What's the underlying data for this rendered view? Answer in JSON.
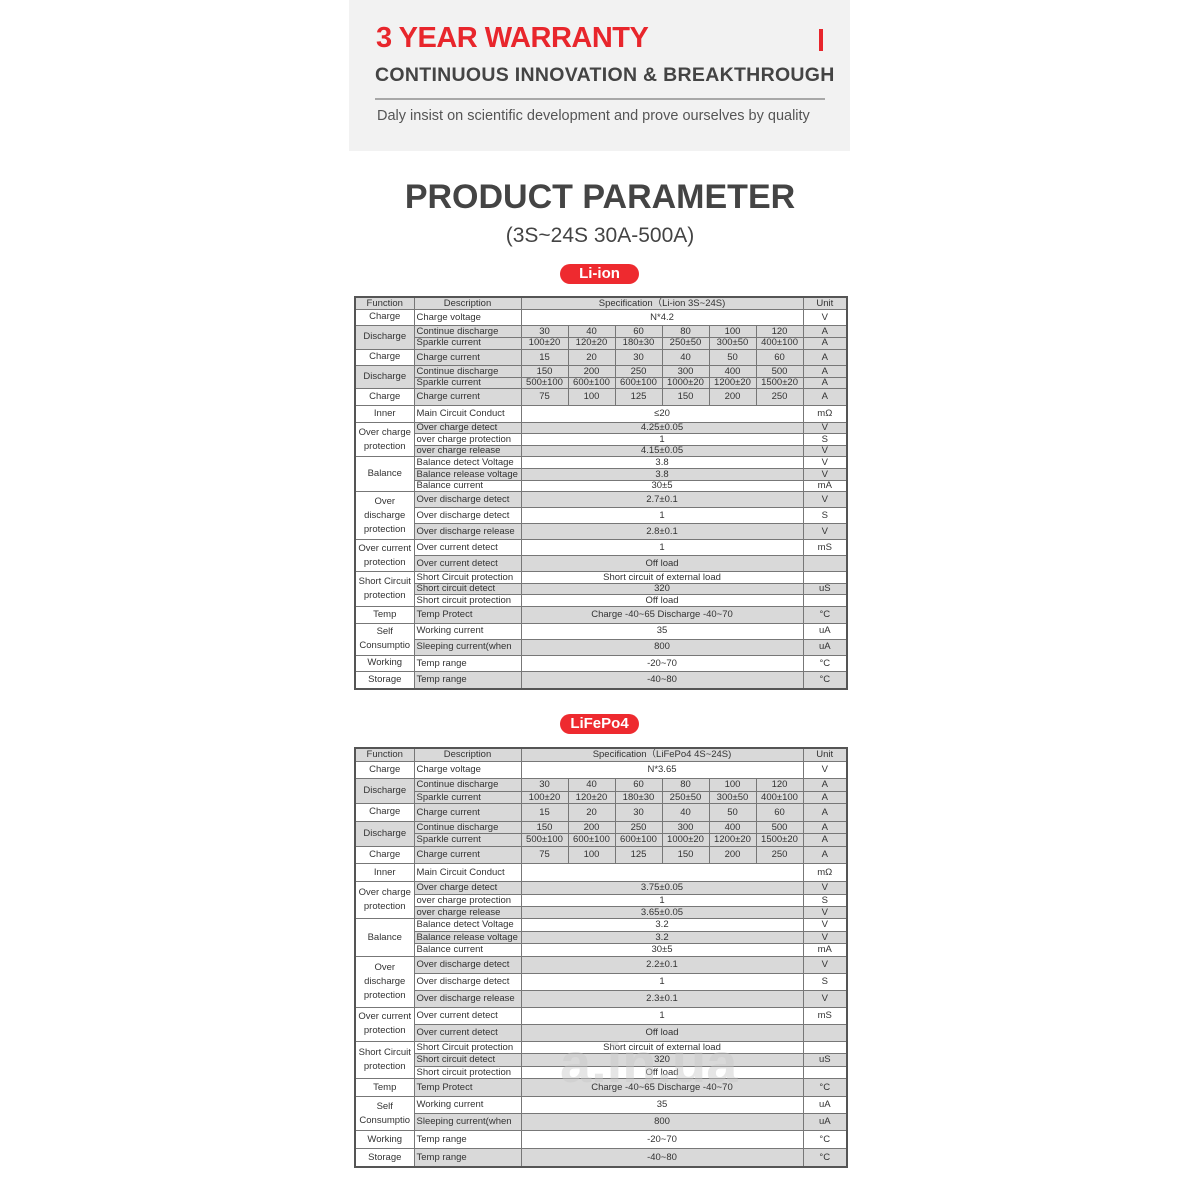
{
  "banner": {
    "title": "3 YEAR WARRANTY",
    "subtitle": "CONTINUOUS INNOVATION & BREAKTHROUGH",
    "tagline": "Daly insist on scientific development and prove ourselves by quality"
  },
  "heading": {
    "title": "PRODUCT PARAMETER",
    "range": "(3S~24S  30A-500A)"
  },
  "colors": {
    "accent": "#e8262c",
    "shade": "#d9d9d9"
  },
  "watermark": "a.in.ua",
  "tables": [
    {
      "badge": "Li-ion",
      "headers": {
        "function": "Function",
        "description": "Description",
        "spec": "Specification（Li-ion  3S~24S)",
        "unit": "Unit"
      },
      "groups": [
        {
          "fn": "Charge",
          "shade": false,
          "rows": [
            {
              "desc": "Charge voltage",
              "vals": [
                "N*4.2"
              ],
              "unit": "V",
              "shade": false
            }
          ]
        },
        {
          "fn": "Discharge",
          "shade": true,
          "rows": [
            {
              "desc": "Continue discharge",
              "vals": [
                "30",
                "40",
                "60",
                "80",
                "100",
                "120"
              ],
              "unit": "A",
              "shade": true
            },
            {
              "desc": "Sparkle current",
              "vals": [
                "100±20",
                "120±20",
                "180±30",
                "250±50",
                "300±50",
                "400±100"
              ],
              "unit": "A",
              "shade": true
            }
          ]
        },
        {
          "fn": "Charge",
          "shade": false,
          "rows": [
            {
              "desc": "Charge current",
              "vals": [
                "15",
                "20",
                "30",
                "40",
                "50",
                "60"
              ],
              "unit": "A",
              "shade": true
            }
          ]
        },
        {
          "fn": "Discharge",
          "shade": true,
          "rows": [
            {
              "desc": "Continue discharge",
              "vals": [
                "150",
                "200",
                "250",
                "300",
                "400",
                "500"
              ],
              "unit": "A",
              "shade": true
            },
            {
              "desc": "Sparkle current",
              "vals": [
                "500±100",
                "600±100",
                "600±100",
                "1000±20",
                "1200±20",
                "1500±20"
              ],
              "unit": "A",
              "shade": true
            }
          ]
        },
        {
          "fn": "Charge",
          "shade": false,
          "rows": [
            {
              "desc": "Charge current",
              "vals": [
                "75",
                "100",
                "125",
                "150",
                "200",
                "250"
              ],
              "unit": "A",
              "shade": true
            }
          ]
        },
        {
          "fn": "Inner",
          "shade": false,
          "rows": [
            {
              "desc": "Main Circuit Conduct",
              "vals": [
                "≤20"
              ],
              "unit": "mΩ",
              "shade": false
            }
          ]
        },
        {
          "fn": "Over charge protection",
          "shade": false,
          "rows": [
            {
              "desc": "Over charge detect",
              "vals": [
                "4.25±0.05"
              ],
              "unit": "V",
              "shade": true
            },
            {
              "desc": "over charge protection",
              "vals": [
                "1"
              ],
              "unit": "S",
              "shade": false
            },
            {
              "desc": "over charge release",
              "vals": [
                "4.15±0.05"
              ],
              "unit": "V",
              "shade": true
            }
          ]
        },
        {
          "fn": "Balance",
          "shade": false,
          "rows": [
            {
              "desc": "Balance detect Voltage",
              "vals": [
                "3.8"
              ],
              "unit": "V",
              "shade": false
            },
            {
              "desc": "Balance release voltage",
              "vals": [
                "3.8"
              ],
              "unit": "V",
              "shade": true
            },
            {
              "desc": "Balance current",
              "vals": [
                "30±5"
              ],
              "unit": "mA",
              "shade": false
            }
          ]
        },
        {
          "fn": "Over discharge protection",
          "shade": false,
          "rows": [
            {
              "desc": "Over discharge detect",
              "vals": [
                "2.7±0.1"
              ],
              "unit": "V",
              "shade": true
            },
            {
              "desc": "Over discharge detect",
              "vals": [
                "1"
              ],
              "unit": "S",
              "shade": false
            },
            {
              "desc": "Over discharge release",
              "vals": [
                "2.8±0.1"
              ],
              "unit": "V",
              "shade": true
            }
          ]
        },
        {
          "fn": "Over current protection",
          "shade": false,
          "rows": [
            {
              "desc": "Over current detect",
              "vals": [
                "1"
              ],
              "unit": "mS",
              "shade": false
            },
            {
              "desc": "Over current detect",
              "vals": [
                "Off load"
              ],
              "unit": "",
              "shade": true
            }
          ]
        },
        {
          "fn": "Short Circuit protection",
          "shade": false,
          "rows": [
            {
              "desc": "Short Circuit protection",
              "vals": [
                "Short circuit of external load"
              ],
              "unit": "",
              "shade": false
            },
            {
              "desc": "Short circuit detect",
              "vals": [
                "320"
              ],
              "unit": "uS",
              "shade": true
            },
            {
              "desc": "Short circuit protection",
              "vals": [
                "Off load"
              ],
              "unit": "",
              "shade": false
            }
          ]
        },
        {
          "fn": "Temp",
          "shade": false,
          "rows": [
            {
              "desc": "Temp Protect",
              "vals": [
                "Charge -40~65 Discharge -40~70"
              ],
              "unit": "°C",
              "shade": true
            }
          ]
        },
        {
          "fn": "Self Consumptio",
          "shade": false,
          "rows": [
            {
              "desc": "Working current",
              "vals": [
                "35"
              ],
              "unit": "uA",
              "shade": false
            },
            {
              "desc": "Sleeping current(when",
              "vals": [
                "800"
              ],
              "unit": "uA",
              "shade": true
            }
          ]
        },
        {
          "fn": "Working",
          "shade": false,
          "rows": [
            {
              "desc": "Temp range",
              "vals": [
                "-20~70"
              ],
              "unit": "°C",
              "shade": false
            }
          ]
        },
        {
          "fn": "Storage",
          "shade": false,
          "rows": [
            {
              "desc": "Temp range",
              "vals": [
                "-40~80"
              ],
              "unit": "°C",
              "shade": true
            }
          ]
        }
      ]
    },
    {
      "badge": "LiFePo4",
      "headers": {
        "function": "Function",
        "description": "Description",
        "spec": "Specification（LiFePo4 4S~24S)",
        "unit": "Unit"
      },
      "groups": [
        {
          "fn": "Charge",
          "shade": false,
          "rows": [
            {
              "desc": "Charge voltage",
              "vals": [
                "N*3.65"
              ],
              "unit": "V",
              "shade": false
            }
          ]
        },
        {
          "fn": "Discharge",
          "shade": true,
          "rows": [
            {
              "desc": "Continue discharge",
              "vals": [
                "30",
                "40",
                "60",
                "80",
                "100",
                "120"
              ],
              "unit": "A",
              "shade": true
            },
            {
              "desc": "Sparkle current",
              "vals": [
                "100±20",
                "120±20",
                "180±30",
                "250±50",
                "300±50",
                "400±100"
              ],
              "unit": "A",
              "shade": true
            }
          ]
        },
        {
          "fn": "Charge",
          "shade": false,
          "rows": [
            {
              "desc": "Charge current",
              "vals": [
                "15",
                "20",
                "30",
                "40",
                "50",
                "60"
              ],
              "unit": "A",
              "shade": true
            }
          ]
        },
        {
          "fn": "Discharge",
          "shade": true,
          "rows": [
            {
              "desc": "Continue discharge",
              "vals": [
                "150",
                "200",
                "250",
                "300",
                "400",
                "500"
              ],
              "unit": "A",
              "shade": true
            },
            {
              "desc": "Sparkle current",
              "vals": [
                "500±100",
                "600±100",
                "600±100",
                "1000±20",
                "1200±20",
                "1500±20"
              ],
              "unit": "A",
              "shade": true
            }
          ]
        },
        {
          "fn": "Charge",
          "shade": false,
          "rows": [
            {
              "desc": "Charge current",
              "vals": [
                "75",
                "100",
                "125",
                "150",
                "200",
                "250"
              ],
              "unit": "A",
              "shade": true
            }
          ]
        },
        {
          "fn": "Inner",
          "shade": false,
          "rows": [
            {
              "desc": "Main Circuit Conduct",
              "vals": [
                ""
              ],
              "unit": "mΩ",
              "shade": false
            }
          ]
        },
        {
          "fn": "Over charge protection",
          "shade": false,
          "rows": [
            {
              "desc": "Over charge detect",
              "vals": [
                "3.75±0.05"
              ],
              "unit": "V",
              "shade": true
            },
            {
              "desc": "over charge protection",
              "vals": [
                "1"
              ],
              "unit": "S",
              "shade": false
            },
            {
              "desc": "over charge release",
              "vals": [
                "3.65±0.05"
              ],
              "unit": "V",
              "shade": true
            }
          ]
        },
        {
          "fn": "Balance",
          "shade": false,
          "rows": [
            {
              "desc": "Balance detect Voltage",
              "vals": [
                "3.2"
              ],
              "unit": "V",
              "shade": false
            },
            {
              "desc": "Balance release voltage",
              "vals": [
                "3.2"
              ],
              "unit": "V",
              "shade": true
            },
            {
              "desc": "Balance current",
              "vals": [
                "30±5"
              ],
              "unit": "mA",
              "shade": false
            }
          ]
        },
        {
          "fn": "Over discharge protection",
          "shade": false,
          "rows": [
            {
              "desc": "Over discharge detect",
              "vals": [
                "2.2±0.1"
              ],
              "unit": "V",
              "shade": true
            },
            {
              "desc": "Over discharge detect",
              "vals": [
                "1"
              ],
              "unit": "S",
              "shade": false
            },
            {
              "desc": "Over discharge release",
              "vals": [
                "2.3±0.1"
              ],
              "unit": "V",
              "shade": true
            }
          ]
        },
        {
          "fn": "Over current protection",
          "shade": false,
          "rows": [
            {
              "desc": "Over current detect",
              "vals": [
                "1"
              ],
              "unit": "mS",
              "shade": false
            },
            {
              "desc": "Over current detect",
              "vals": [
                "Off load"
              ],
              "unit": "",
              "shade": true
            }
          ]
        },
        {
          "fn": "Short Circuit protection",
          "shade": false,
          "rows": [
            {
              "desc": "Short Circuit protection",
              "vals": [
                "Short circuit of external load"
              ],
              "unit": "",
              "shade": false
            },
            {
              "desc": "Short circuit detect",
              "vals": [
                "320"
              ],
              "unit": "uS",
              "shade": true
            },
            {
              "desc": "Short circuit protection",
              "vals": [
                "Off load"
              ],
              "unit": "",
              "shade": false
            }
          ]
        },
        {
          "fn": "Temp",
          "shade": false,
          "rows": [
            {
              "desc": "Temp Protect",
              "vals": [
                "Charge -40~65 Discharge -40~70"
              ],
              "unit": "°C",
              "shade": true
            }
          ]
        },
        {
          "fn": "Self Consumptio",
          "shade": false,
          "rows": [
            {
              "desc": "Working current",
              "vals": [
                "35"
              ],
              "unit": "uA",
              "shade": false
            },
            {
              "desc": "Sleeping current(when",
              "vals": [
                "800"
              ],
              "unit": "uA",
              "shade": true
            }
          ]
        },
        {
          "fn": "Working",
          "shade": false,
          "rows": [
            {
              "desc": "Temp range",
              "vals": [
                "-20~70"
              ],
              "unit": "°C",
              "shade": false
            }
          ]
        },
        {
          "fn": "Storage",
          "shade": false,
          "rows": [
            {
              "desc": "Temp range",
              "vals": [
                "-40~80"
              ],
              "unit": "°C",
              "shade": true
            }
          ]
        }
      ]
    }
  ]
}
